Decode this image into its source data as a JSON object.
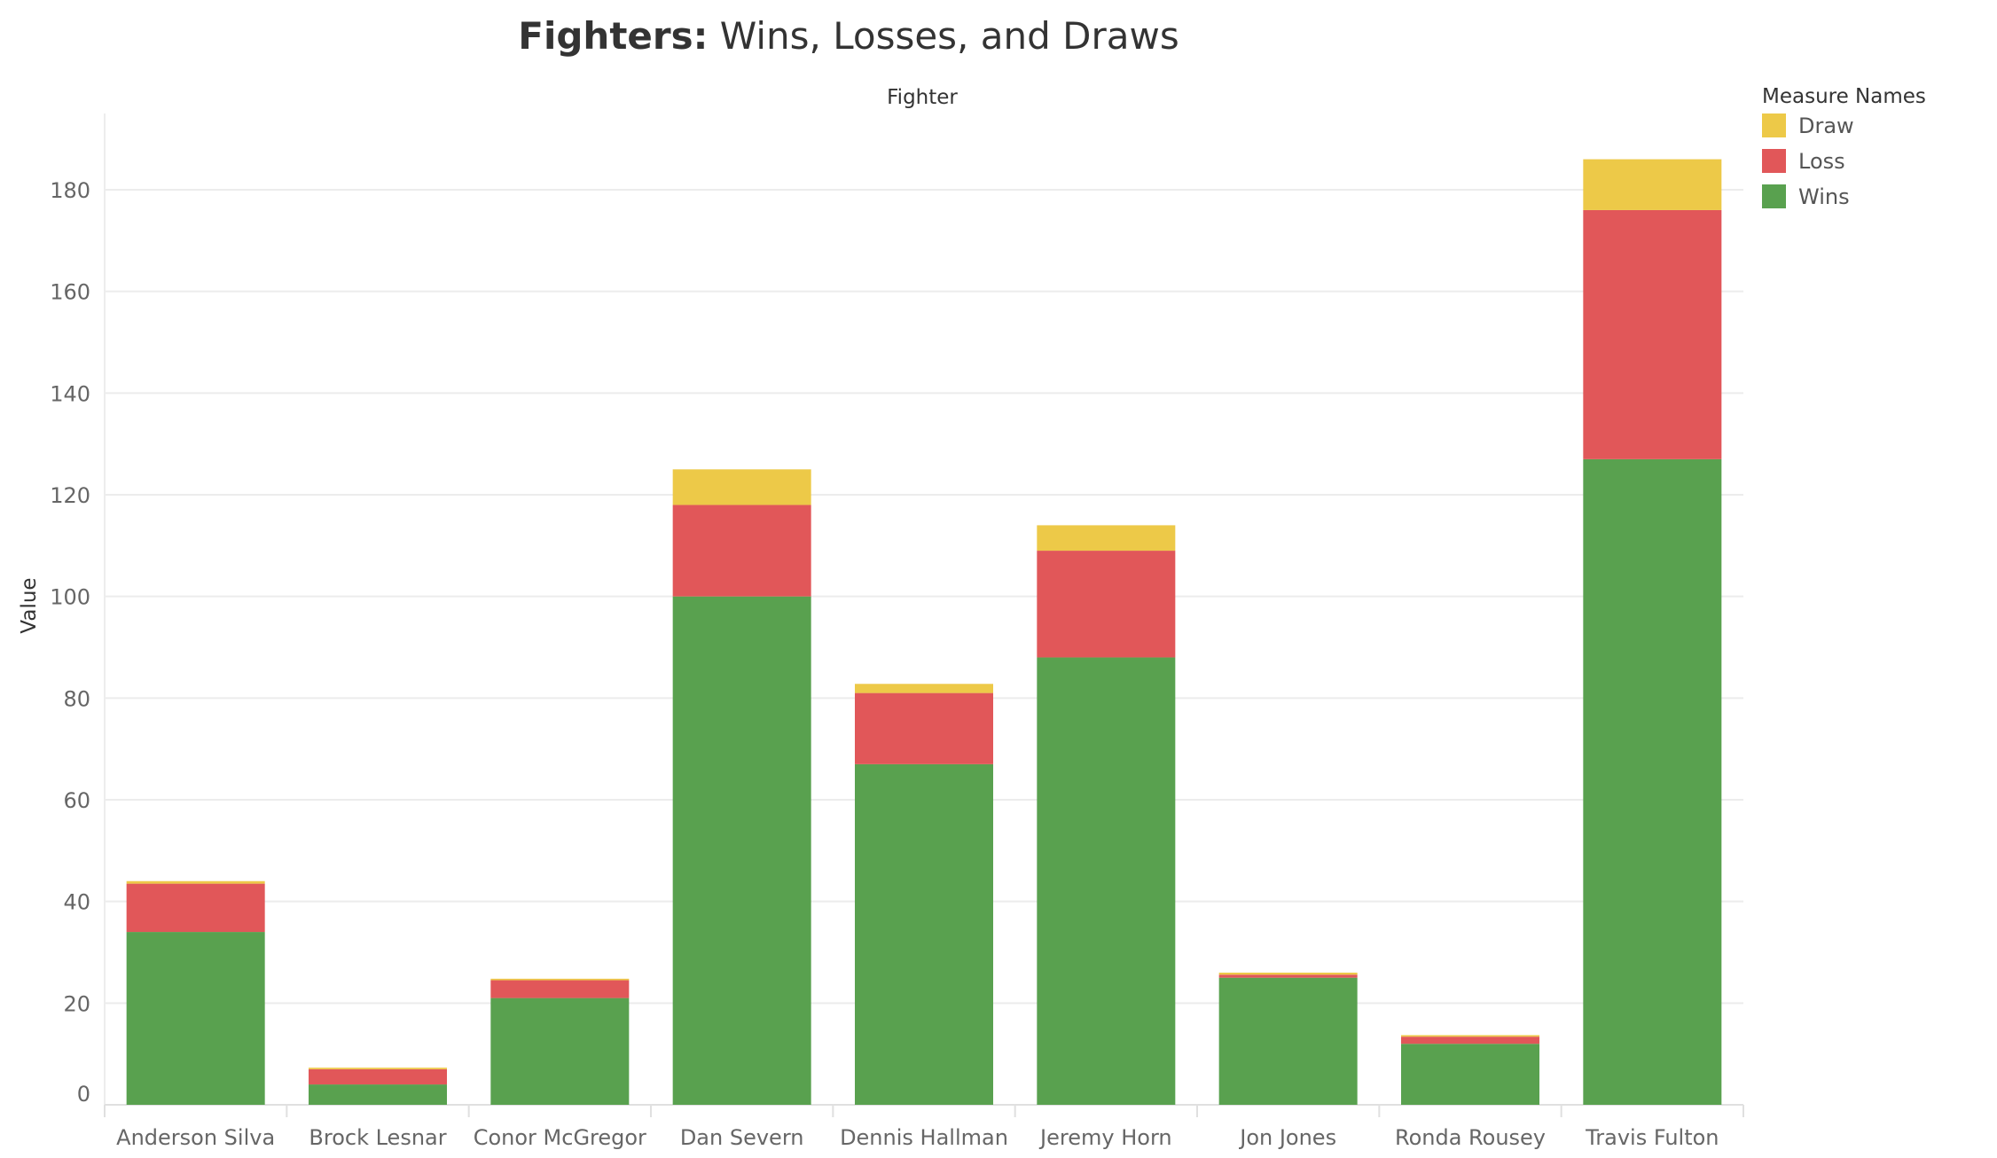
{
  "chart_data": {
    "type": "bar",
    "stacked": true,
    "title_bold": "Fighters:",
    "title_rest": " Wins, Losses, and Draws",
    "column_header": "Fighter",
    "ylabel": "Value",
    "ylim": [
      0,
      195
    ],
    "yticks": [
      0,
      20,
      40,
      60,
      80,
      100,
      120,
      140,
      160,
      180
    ],
    "grid": true,
    "legend_title": "Measure Names",
    "legend_position": "top-right",
    "categories": [
      "Anderson Silva",
      "Brock Lesnar",
      "Conor McGregor",
      "Dan Severn",
      "Dennis Hallman",
      "Jeremy Horn",
      "Jon Jones",
      "Ronda Rousey",
      "Travis Fulton"
    ],
    "series": [
      {
        "name": "Wins",
        "color": "#59a14f",
        "values": [
          34,
          4,
          21,
          100,
          67,
          88,
          25,
          12,
          127
        ]
      },
      {
        "name": "Loss",
        "color": "#e15759",
        "values": [
          9.5,
          3,
          3.5,
          18,
          14,
          21,
          0.6,
          1.4,
          49
        ]
      },
      {
        "name": "Draw",
        "color": "#edc948",
        "values": [
          0.5,
          0.3,
          0.3,
          7,
          1.8,
          5,
          0.4,
          0.3,
          10
        ]
      }
    ],
    "legend_order": [
      "Draw",
      "Loss",
      "Wins"
    ]
  }
}
